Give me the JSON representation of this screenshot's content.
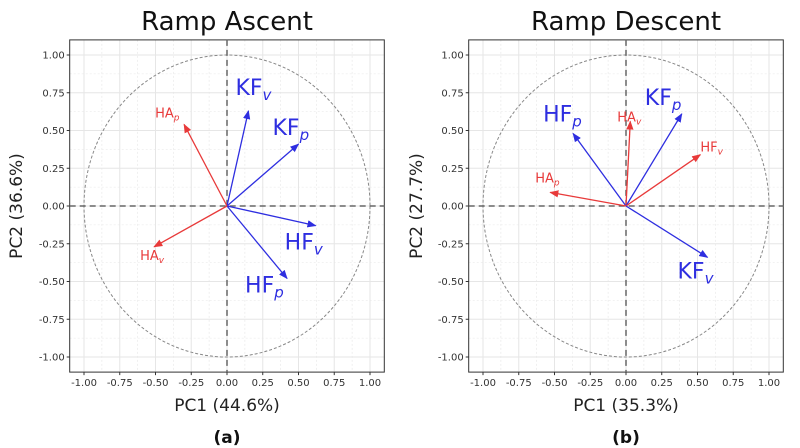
{
  "colors": {
    "hydraulic": "#e83a3a",
    "knee": "#2e2ee0",
    "grid": "#e6e6e6",
    "frame": "#333333"
  },
  "chart_data": [
    {
      "type": "biplot",
      "panel_label": "(a)",
      "title": "Ramp Ascent",
      "xlabel": "PC1 (44.6%)",
      "ylabel": "PC2 (36.6%)",
      "xlim": [
        -1.1,
        1.1
      ],
      "ylim": [
        -1.1,
        1.1
      ],
      "xticks": [
        "-1.00",
        "-0.75",
        "-0.50",
        "-0.25",
        "0.00",
        "0.25",
        "0.50",
        "0.75",
        "1.00"
      ],
      "yticks": [
        "-1.00",
        "-0.75",
        "-0.50",
        "-0.25",
        "0.00",
        "0.25",
        "0.50",
        "0.75",
        "1.00"
      ],
      "grid": true,
      "unit_circle": true,
      "vectors": [
        {
          "label": "KF",
          "sub": "v",
          "x": 0.15,
          "y": 0.63,
          "group": "knee"
        },
        {
          "label": "KF",
          "sub": "p",
          "x": 0.5,
          "y": 0.41,
          "group": "knee"
        },
        {
          "label": "HF",
          "sub": "v",
          "x": 0.62,
          "y": -0.13,
          "group": "knee"
        },
        {
          "label": "HF",
          "sub": "p",
          "x": 0.42,
          "y": -0.48,
          "group": "knee"
        },
        {
          "label": "HA",
          "sub": "p",
          "x": -0.3,
          "y": 0.54,
          "group": "hydraulic"
        },
        {
          "label": "HA",
          "sub": "v",
          "x": -0.51,
          "y": -0.27,
          "group": "hydraulic"
        }
      ]
    },
    {
      "type": "biplot",
      "panel_label": "(b)",
      "title": "Ramp Descent",
      "xlabel": "PC1 (35.3%)",
      "ylabel": "PC2 (27.7%)",
      "xlim": [
        -1.1,
        1.1
      ],
      "ylim": [
        -1.1,
        1.1
      ],
      "xticks": [
        "-1.00",
        "-0.75",
        "-0.50",
        "-0.25",
        "0.00",
        "0.25",
        "0.50",
        "0.75",
        "1.00"
      ],
      "yticks": [
        "-1.00",
        "-0.75",
        "-0.50",
        "-0.25",
        "0.00",
        "0.25",
        "0.50",
        "0.75",
        "1.00"
      ],
      "grid": true,
      "unit_circle": true,
      "vectors": [
        {
          "label": "HF",
          "sub": "p",
          "x": -0.37,
          "y": 0.48,
          "group": "knee"
        },
        {
          "label": "HA",
          "sub": "v",
          "x": 0.03,
          "y": 0.56,
          "group": "hydraulic"
        },
        {
          "label": "KF",
          "sub": "p",
          "x": 0.39,
          "y": 0.61,
          "group": "knee"
        },
        {
          "label": "HF",
          "sub": "v",
          "x": 0.52,
          "y": 0.34,
          "group": "hydraulic"
        },
        {
          "label": "HA",
          "sub": "p",
          "x": -0.53,
          "y": 0.09,
          "group": "hydraulic"
        },
        {
          "label": "KF",
          "sub": "v",
          "x": 0.57,
          "y": -0.34,
          "group": "knee"
        }
      ]
    }
  ]
}
